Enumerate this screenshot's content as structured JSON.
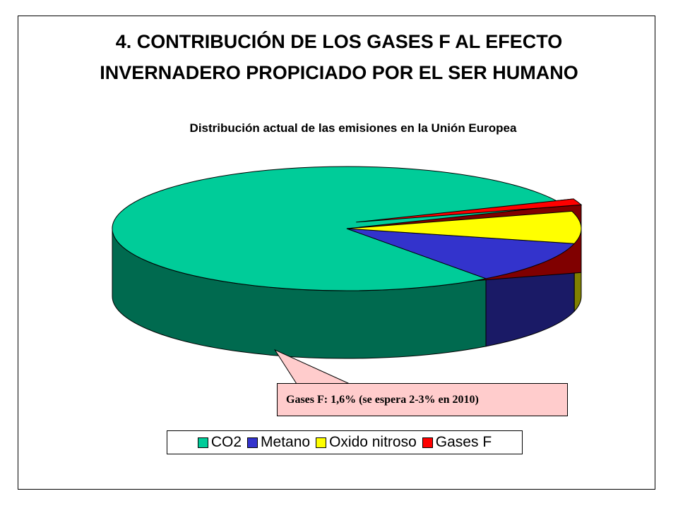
{
  "title": {
    "line1": "4. CONTRIBUCIÓN DE LOS GASES F AL EFECTO",
    "line2": "INVERNADERO PROPICIADO POR EL SER HUMANO"
  },
  "chart_data": {
    "type": "pie",
    "title": "Distribución actual de las emisiones en la Unión Europea",
    "legend_position": "bottom",
    "three_d": true,
    "slices": [
      {
        "name": "CO2",
        "value": 79,
        "color": "#00cc99",
        "side_color": "#006a4f"
      },
      {
        "name": "Metano",
        "value": 11,
        "color": "#3333cc",
        "side_color": "#1a1a66"
      },
      {
        "name": "Oxido nitroso",
        "value": 8.4,
        "color": "#ffff00",
        "side_color": "#808000"
      },
      {
        "name": "Gases F",
        "value": 1.6,
        "color": "#ff0000",
        "side_color": "#800000",
        "exploded": true
      }
    ],
    "annotation": "Gases F: 1,6% (se espera 2-3% en 2010)"
  }
}
